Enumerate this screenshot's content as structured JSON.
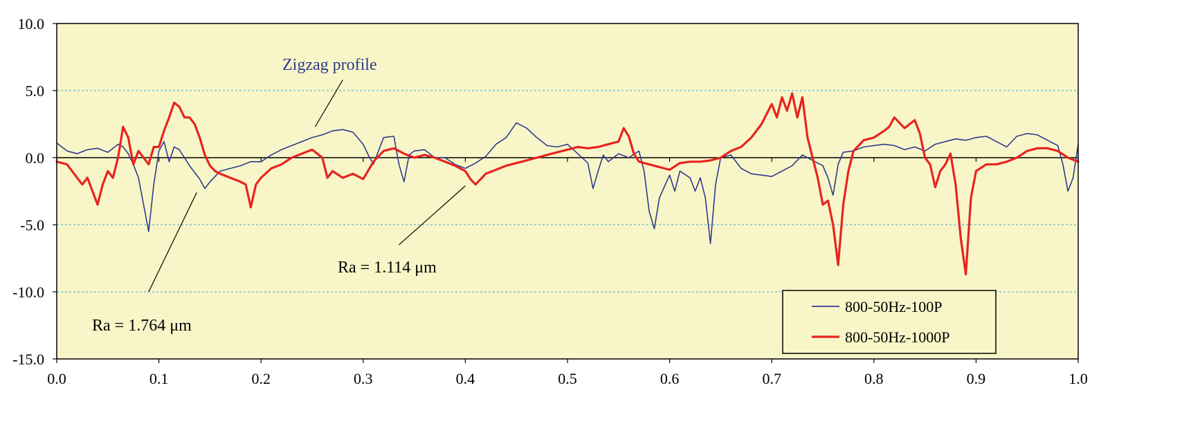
{
  "chart_data": {
    "type": "line",
    "title": "",
    "xlabel": "",
    "ylabel": "",
    "xlim": [
      0.0,
      1.0
    ],
    "ylim": [
      -15.0,
      10.0
    ],
    "x_ticks": [
      "0.0",
      "0.1",
      "0.2",
      "0.3",
      "0.4",
      "0.5",
      "0.6",
      "0.7",
      "0.8",
      "0.9",
      "1.0"
    ],
    "y_ticks": [
      "10.0",
      "5.0",
      "0.0",
      "-5.0",
      "-10.0",
      "-15.0"
    ],
    "gridlines_y": [
      5.0,
      -5.0,
      -10.0
    ],
    "legend_position": "bottom-right",
    "colors": {
      "background": "#f8f6c8",
      "grid": "#5bb8d8",
      "series_blue": "#2e3a8c",
      "series_red": "#e8231f",
      "annotation_blue": "#2e3a8c"
    },
    "series": [
      {
        "name": "800-50Hz-100P",
        "color": "#2e3a8c",
        "x": [
          0.0,
          0.01,
          0.02,
          0.03,
          0.04,
          0.05,
          0.06,
          0.065,
          0.07,
          0.075,
          0.08,
          0.085,
          0.09,
          0.095,
          0.1,
          0.105,
          0.11,
          0.115,
          0.12,
          0.125,
          0.13,
          0.14,
          0.145,
          0.15,
          0.16,
          0.17,
          0.18,
          0.19,
          0.2,
          0.21,
          0.22,
          0.23,
          0.24,
          0.25,
          0.26,
          0.27,
          0.28,
          0.29,
          0.3,
          0.305,
          0.31,
          0.315,
          0.32,
          0.33,
          0.335,
          0.34,
          0.345,
          0.35,
          0.36,
          0.37,
          0.38,
          0.39,
          0.4,
          0.41,
          0.42,
          0.43,
          0.44,
          0.45,
          0.46,
          0.47,
          0.48,
          0.49,
          0.5,
          0.51,
          0.52,
          0.525,
          0.53,
          0.535,
          0.54,
          0.55,
          0.56,
          0.57,
          0.575,
          0.58,
          0.585,
          0.59,
          0.6,
          0.605,
          0.61,
          0.62,
          0.625,
          0.63,
          0.635,
          0.64,
          0.645,
          0.65,
          0.66,
          0.67,
          0.68,
          0.69,
          0.7,
          0.71,
          0.72,
          0.73,
          0.74,
          0.75,
          0.755,
          0.76,
          0.765,
          0.77,
          0.78,
          0.79,
          0.8,
          0.81,
          0.82,
          0.83,
          0.84,
          0.85,
          0.86,
          0.87,
          0.88,
          0.89,
          0.9,
          0.91,
          0.92,
          0.93,
          0.94,
          0.95,
          0.96,
          0.97,
          0.98,
          0.985,
          0.99,
          0.995,
          1.0
        ],
        "y": [
          1.1,
          0.5,
          0.3,
          0.6,
          0.7,
          0.4,
          1.0,
          0.8,
          0.3,
          -0.5,
          -1.5,
          -3.5,
          -5.5,
          -2.0,
          0.5,
          1.2,
          -0.3,
          0.8,
          0.6,
          0.0,
          -0.6,
          -1.6,
          -2.3,
          -1.8,
          -1.0,
          -0.8,
          -0.6,
          -0.3,
          -0.3,
          0.2,
          0.6,
          0.9,
          1.2,
          1.5,
          1.7,
          2.0,
          2.1,
          1.9,
          1.0,
          0.2,
          -0.5,
          0.5,
          1.5,
          1.6,
          -0.5,
          -1.8,
          0.2,
          0.5,
          0.6,
          0.0,
          0.0,
          -0.5,
          -0.8,
          -0.4,
          0.1,
          1.0,
          1.5,
          2.6,
          2.2,
          1.5,
          0.9,
          0.8,
          1.0,
          0.3,
          -0.4,
          -2.3,
          -1.0,
          0.2,
          -0.3,
          0.3,
          0.0,
          0.5,
          -1.0,
          -4.0,
          -5.3,
          -3.0,
          -1.3,
          -2.5,
          -1.0,
          -1.5,
          -2.5,
          -1.5,
          -3.0,
          -6.4,
          -2.0,
          0.0,
          0.2,
          -0.8,
          -1.2,
          -1.3,
          -1.4,
          -1.0,
          -0.6,
          0.2,
          -0.2,
          -0.6,
          -1.5,
          -2.8,
          -0.5,
          0.4,
          0.5,
          0.8,
          0.9,
          1.0,
          0.9,
          0.6,
          0.8,
          0.5,
          1.0,
          1.2,
          1.4,
          1.3,
          1.5,
          1.6,
          1.2,
          0.8,
          1.6,
          1.8,
          1.7,
          1.3,
          0.9,
          -0.5,
          -2.5,
          -1.5,
          1.0
        ]
      },
      {
        "name": "800-50Hz-1000P",
        "color": "#e8231f",
        "x": [
          0.0,
          0.01,
          0.02,
          0.025,
          0.03,
          0.035,
          0.04,
          0.045,
          0.05,
          0.055,
          0.06,
          0.065,
          0.07,
          0.075,
          0.08,
          0.085,
          0.09,
          0.095,
          0.1,
          0.105,
          0.11,
          0.115,
          0.12,
          0.125,
          0.13,
          0.135,
          0.14,
          0.145,
          0.15,
          0.155,
          0.16,
          0.17,
          0.18,
          0.185,
          0.19,
          0.195,
          0.2,
          0.21,
          0.22,
          0.23,
          0.24,
          0.25,
          0.26,
          0.265,
          0.27,
          0.28,
          0.29,
          0.3,
          0.31,
          0.32,
          0.33,
          0.34,
          0.35,
          0.36,
          0.37,
          0.38,
          0.39,
          0.4,
          0.405,
          0.41,
          0.42,
          0.43,
          0.44,
          0.45,
          0.46,
          0.47,
          0.48,
          0.49,
          0.5,
          0.51,
          0.52,
          0.53,
          0.54,
          0.55,
          0.555,
          0.56,
          0.565,
          0.57,
          0.58,
          0.59,
          0.6,
          0.61,
          0.62,
          0.63,
          0.64,
          0.65,
          0.66,
          0.67,
          0.68,
          0.69,
          0.7,
          0.705,
          0.71,
          0.715,
          0.72,
          0.725,
          0.73,
          0.735,
          0.74,
          0.745,
          0.75,
          0.755,
          0.76,
          0.765,
          0.77,
          0.775,
          0.78,
          0.79,
          0.8,
          0.81,
          0.815,
          0.82,
          0.83,
          0.84,
          0.845,
          0.85,
          0.855,
          0.86,
          0.865,
          0.87,
          0.875,
          0.88,
          0.885,
          0.89,
          0.895,
          0.9,
          0.91,
          0.92,
          0.93,
          0.94,
          0.95,
          0.96,
          0.97,
          0.98,
          0.99,
          1.0
        ],
        "y": [
          -0.3,
          -0.5,
          -1.5,
          -2.0,
          -1.5,
          -2.5,
          -3.5,
          -2.0,
          -1.0,
          -1.5,
          0.0,
          2.3,
          1.5,
          -0.5,
          0.5,
          0.0,
          -0.5,
          0.8,
          0.8,
          2.0,
          3.0,
          4.1,
          3.8,
          3.0,
          3.0,
          2.5,
          1.5,
          0.2,
          -0.6,
          -1.0,
          -1.2,
          -1.5,
          -1.8,
          -2.0,
          -3.7,
          -2.0,
          -1.5,
          -0.8,
          -0.5,
          0.0,
          0.3,
          0.6,
          0.0,
          -1.5,
          -1.0,
          -1.5,
          -1.2,
          -1.6,
          -0.3,
          0.5,
          0.7,
          0.3,
          0.0,
          0.2,
          0.0,
          -0.3,
          -0.6,
          -1.0,
          -1.6,
          -2.0,
          -1.2,
          -0.9,
          -0.6,
          -0.4,
          -0.2,
          0.0,
          0.2,
          0.4,
          0.6,
          0.8,
          0.7,
          0.8,
          1.0,
          1.2,
          2.2,
          1.6,
          0.3,
          -0.3,
          -0.5,
          -0.7,
          -0.9,
          -0.4,
          -0.3,
          -0.3,
          -0.2,
          0.0,
          0.5,
          0.8,
          1.5,
          2.5,
          4.0,
          3.0,
          4.5,
          3.5,
          4.8,
          3.0,
          4.5,
          1.5,
          0.0,
          -1.5,
          -3.5,
          -3.2,
          -5.0,
          -8.0,
          -3.5,
          -1.0,
          0.5,
          1.3,
          1.5,
          2.0,
          2.3,
          3.0,
          2.2,
          2.8,
          1.8,
          0.0,
          -0.5,
          -2.2,
          -1.0,
          -0.5,
          0.3,
          -2.0,
          -6.0,
          -8.7,
          -3.0,
          -1.0,
          -0.5,
          -0.5,
          -0.3,
          0.0,
          0.5,
          0.7,
          0.7,
          0.5,
          0.0,
          -0.3
        ]
      }
    ],
    "annotations": [
      {
        "text": "Zigzag profile"
      },
      {
        "text": "Ra = 1.114 μm"
      },
      {
        "text": "Ra = 1.764 μm"
      }
    ]
  }
}
